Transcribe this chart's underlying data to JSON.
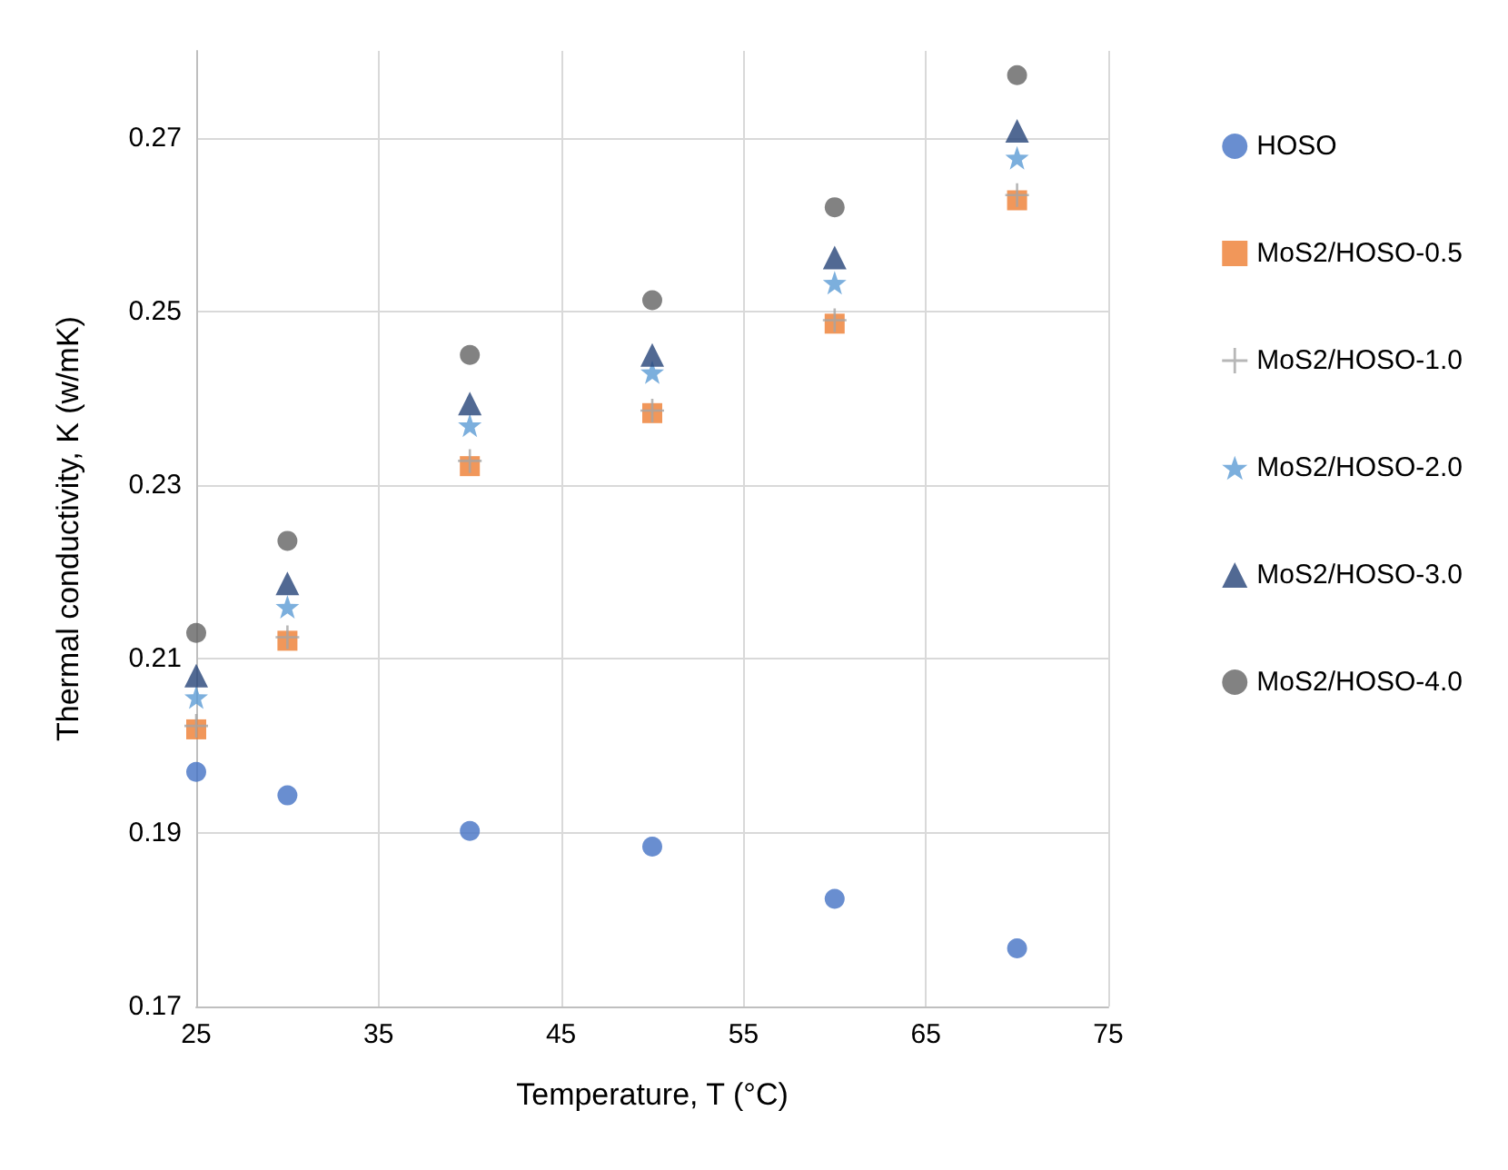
{
  "chart_data": {
    "type": "scatter",
    "xlabel": "Temperature, T (°C)",
    "ylabel": "Thermal conductivity, K (w/mK)",
    "x": [
      25,
      30,
      40,
      50,
      60,
      70
    ],
    "series": [
      {
        "name": "HOSO",
        "color": "#4472c4",
        "marker": "circle",
        "values": [
          0.197,
          0.1943,
          0.1902,
          0.1884,
          0.1824,
          0.1767
        ]
      },
      {
        "name": "MoS2/HOSO-0.5",
        "color": "#ed7d31",
        "marker": "square",
        "values": [
          0.2019,
          0.2121,
          0.2322,
          0.2383,
          0.2486,
          0.2628
        ]
      },
      {
        "name": "MoS2/HOSO-1.0",
        "color": "#a5a5a5",
        "marker": "cross",
        "values": [
          0.2023,
          0.2125,
          0.2328,
          0.2386,
          0.249,
          0.2634
        ]
      },
      {
        "name": "MoS2/HOSO-2.0",
        "color": "#5b9bd5",
        "marker": "star",
        "values": [
          0.2056,
          0.216,
          0.2369,
          0.243,
          0.2533,
          0.2677
        ]
      },
      {
        "name": "MoS2/HOSO-3.0",
        "color": "#264478",
        "marker": "triangle",
        "values": [
          0.2081,
          0.2187,
          0.2394,
          0.245,
          0.2562,
          0.2708
        ]
      },
      {
        "name": "MoS2/HOSO-4.0",
        "color": "#636363",
        "marker": "circle",
        "values": [
          0.213,
          0.2236,
          0.245,
          0.2513,
          0.262,
          0.2772
        ]
      }
    ],
    "xlim": [
      25,
      75
    ],
    "xticks": [
      25,
      35,
      45,
      55,
      65,
      75
    ],
    "ylim": [
      0.17,
      0.28
    ],
    "yticks": [
      0.17,
      0.19,
      0.21,
      0.23,
      0.25,
      0.27
    ],
    "grid": true,
    "legend": "right"
  }
}
